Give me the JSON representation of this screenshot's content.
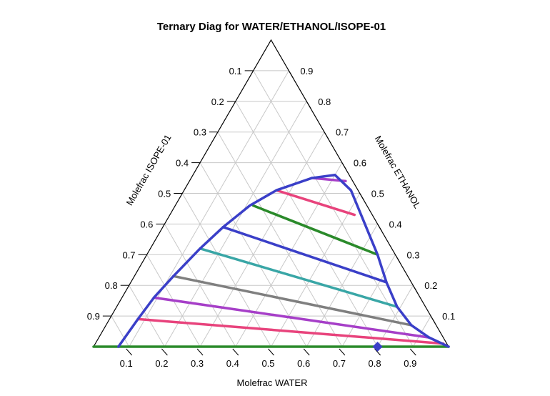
{
  "chart_data": {
    "type": "ternary",
    "title": "Ternary Diag for WATER/ETHANOL/ISOPE-01",
    "axes": {
      "bottom": {
        "label": "Molefrac WATER",
        "ticks": [
          "0.1",
          "0.2",
          "0.3",
          "0.4",
          "0.5",
          "0.6",
          "0.7",
          "0.8",
          "0.9"
        ]
      },
      "right": {
        "label": "Molefrac ETHANOL",
        "ticks": [
          "0.9",
          "0.8",
          "0.7",
          "0.6",
          "0.5",
          "0.4",
          "0.3",
          "0.2",
          "0.1"
        ]
      },
      "left": {
        "label": "Molefrac ISOPE-01",
        "ticks": [
          "0.1",
          "0.2",
          "0.3",
          "0.4",
          "0.5",
          "0.6",
          "0.7",
          "0.8",
          "0.9"
        ]
      }
    },
    "grid": true,
    "binodal_curve": {
      "color": "#3a3fc8",
      "points": [
        {
          "water": 0.07,
          "ethanol": 0.0
        },
        {
          "water": 0.08,
          "ethanol": 0.09
        },
        {
          "water": 0.09,
          "ethanol": 0.16
        },
        {
          "water": 0.11,
          "ethanol": 0.23
        },
        {
          "water": 0.14,
          "ethanol": 0.32
        },
        {
          "water": 0.17,
          "ethanol": 0.39
        },
        {
          "water": 0.21,
          "ethanol": 0.46
        },
        {
          "water": 0.26,
          "ethanol": 0.51
        },
        {
          "water": 0.34,
          "ethanol": 0.55
        },
        {
          "water": 0.4,
          "ethanol": 0.56
        },
        {
          "water": 0.47,
          "ethanol": 0.51
        },
        {
          "water": 0.53,
          "ethanol": 0.44
        },
        {
          "water": 0.59,
          "ethanol": 0.37
        },
        {
          "water": 0.65,
          "ethanol": 0.3
        },
        {
          "water": 0.72,
          "ethanol": 0.21
        },
        {
          "water": 0.79,
          "ethanol": 0.13
        },
        {
          "water": 0.86,
          "ethanol": 0.07
        },
        {
          "water": 0.93,
          "ethanol": 0.03
        },
        {
          "water": 1.0,
          "ethanol": 0.0
        }
      ]
    },
    "tie_lines": [
      {
        "color": "#e8437c",
        "from": {
          "water": 0.26,
          "ethanol": 0.51
        },
        "to": {
          "water": 0.52,
          "ethanol": 0.43
        }
      },
      {
        "color": "#a63fc8",
        "from": {
          "water": 0.34,
          "ethanol": 0.55
        },
        "to": {
          "water": 0.44,
          "ethanol": 0.54
        }
      },
      {
        "color": "#2a8a2a",
        "from": {
          "water": 0.22,
          "ethanol": 0.46
        },
        "to": {
          "water": 0.65,
          "ethanol": 0.3
        }
      },
      {
        "color": "#3a3fc8",
        "from": {
          "water": 0.17,
          "ethanol": 0.39
        },
        "to": {
          "water": 0.72,
          "ethanol": 0.21
        }
      },
      {
        "color": "#39a6a6",
        "from": {
          "water": 0.14,
          "ethanol": 0.32
        },
        "to": {
          "water": 0.79,
          "ethanol": 0.13
        }
      },
      {
        "color": "#7f7f7f",
        "from": {
          "water": 0.11,
          "ethanol": 0.23
        },
        "to": {
          "water": 0.86,
          "ethanol": 0.07
        }
      },
      {
        "color": "#a63fc8",
        "from": {
          "water": 0.09,
          "ethanol": 0.16
        },
        "to": {
          "water": 0.93,
          "ethanol": 0.03
        }
      },
      {
        "color": "#e8437c",
        "from": {
          "water": 0.08,
          "ethanol": 0.09
        },
        "to": {
          "water": 0.98,
          "ethanol": 0.01
        }
      },
      {
        "color": "#2a8a2a",
        "from": {
          "water": 0.0,
          "ethanol": 0.0
        },
        "to": {
          "water": 1.0,
          "ethanol": 0.0
        }
      }
    ],
    "marker": {
      "color": "#3a3fc8",
      "shape": "diamond",
      "water": 0.8,
      "ethanol": 0.0
    }
  }
}
